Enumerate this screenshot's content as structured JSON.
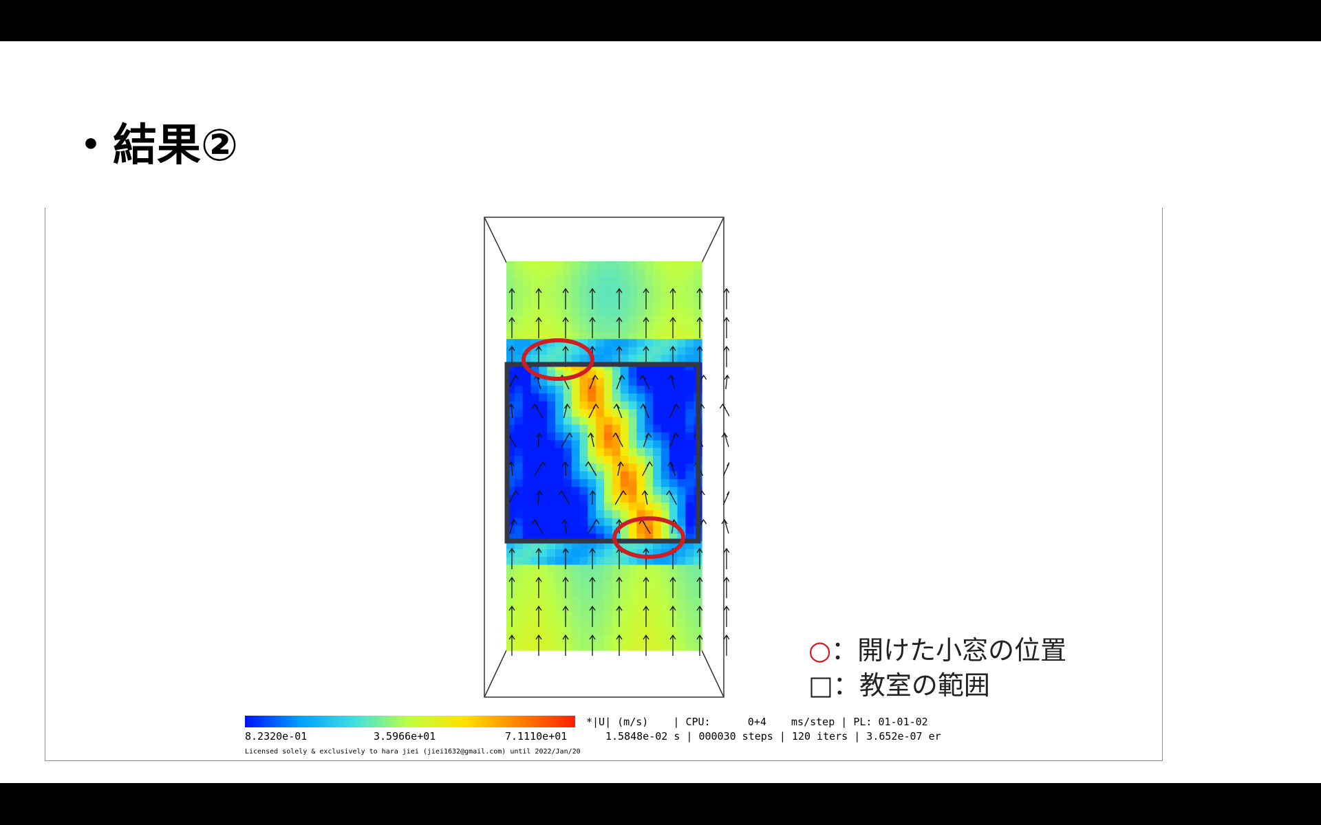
{
  "slide": {
    "title": "・結果②"
  },
  "legend": [
    {
      "symbol": "○",
      "text": "：開けた小窓の位置",
      "symbol_color": "#d4181f"
    },
    {
      "symbol": "□",
      "text": "：教室の範囲",
      "symbol_color": "#222222"
    }
  ],
  "colorbar": {
    "labels": [
      "8.2320e-01",
      "3.5966e+01",
      "7.1110e+01"
    ],
    "colors": [
      "#0010ff",
      "#00a0ff",
      "#40e0e0",
      "#c0ff40",
      "#ffe000",
      "#ff8000",
      "#ff2000"
    ]
  },
  "solver_status": {
    "line1": "*|U| (m/s)    | CPU:      0+4    ms/step | PL: 01-01-02",
    "line2": "1.5848e-02 s | 000030 steps | 120 iters | 3.652e-07 er"
  },
  "license": "Licensed solely & exclusively to hara jiei (jiei1632@gmail.com) until 2022/Jan/20",
  "colors": {
    "window_marker": "#cc1f25",
    "room_outline": "#333844"
  }
}
